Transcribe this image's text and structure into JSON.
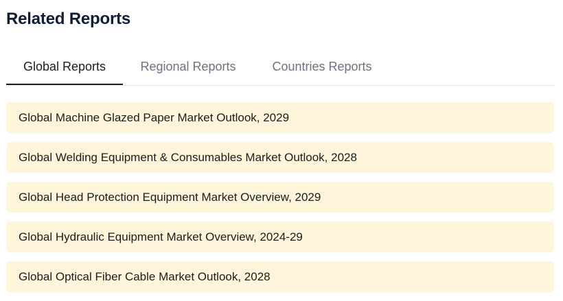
{
  "section": {
    "title": "Related Reports"
  },
  "tabs": [
    {
      "label": "Global Reports",
      "active": true
    },
    {
      "label": "Regional Reports",
      "active": false
    },
    {
      "label": "Countries Reports",
      "active": false
    }
  ],
  "reports": [
    {
      "title": "Global Machine Glazed Paper Market Outlook, 2029"
    },
    {
      "title": "Global Welding Equipment & Consumables Market Outlook, 2028"
    },
    {
      "title": "Global Head Protection Equipment Market Overview, 2029"
    },
    {
      "title": "Global Hydraulic Equipment Market Overview, 2024-29"
    },
    {
      "title": "Global Optical Fiber Cable Market Outlook, 2028"
    }
  ],
  "colors": {
    "title": "#0f1e36",
    "tab_active": "#1c1c1c",
    "tab_inactive": "#6b7280",
    "item_background": "#fef5da"
  }
}
